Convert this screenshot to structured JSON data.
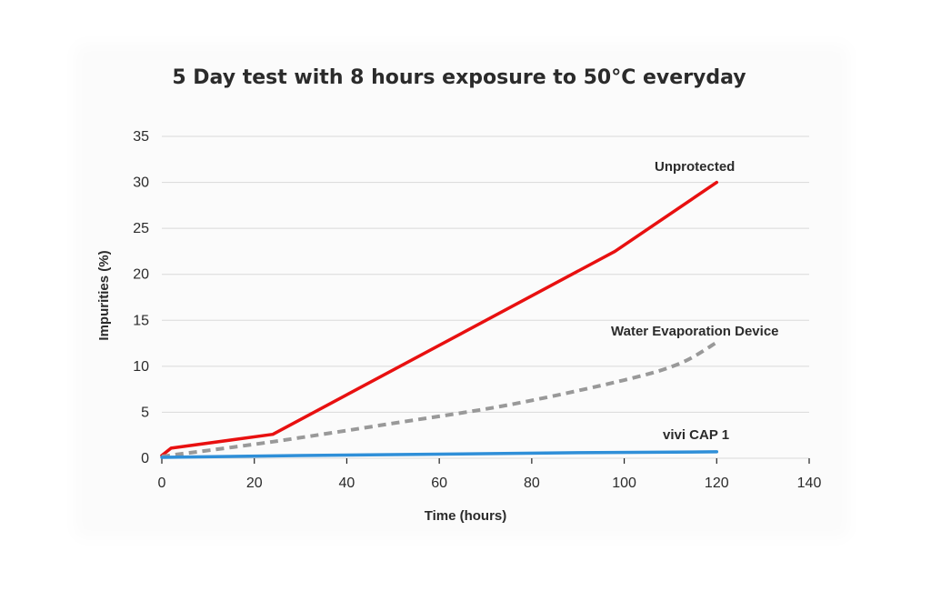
{
  "chart_data": {
    "type": "line",
    "title": "5 Day test with 8 hours exposure to 50°C everyday",
    "xlabel": "Time (hours)",
    "ylabel": "Impurities (%)",
    "xlim": [
      0,
      140
    ],
    "ylim": [
      0,
      35
    ],
    "xticks": [
      0,
      20,
      40,
      60,
      80,
      100,
      120,
      140
    ],
    "yticks": [
      0,
      5,
      10,
      15,
      20,
      25,
      30,
      35
    ],
    "grid": true,
    "series": [
      {
        "name": "Unprotected",
        "color": "#e81010",
        "style": "solid",
        "x": [
          0,
          2,
          24,
          98,
          120
        ],
        "y": [
          0.3,
          1.1,
          2.6,
          22.5,
          30.0
        ]
      },
      {
        "name": "Water Evaporation Device",
        "color": "#999999",
        "style": "dashed",
        "x": [
          0,
          24,
          50,
          75,
          100,
          112,
          120
        ],
        "y": [
          0.2,
          1.8,
          3.8,
          5.8,
          8.5,
          10.3,
          12.6
        ]
      },
      {
        "name": "vivi CAP 1",
        "color": "#2f8fd8",
        "style": "solid",
        "x": [
          0,
          30,
          60,
          90,
          120
        ],
        "y": [
          0.1,
          0.3,
          0.45,
          0.6,
          0.7
        ]
      }
    ]
  }
}
